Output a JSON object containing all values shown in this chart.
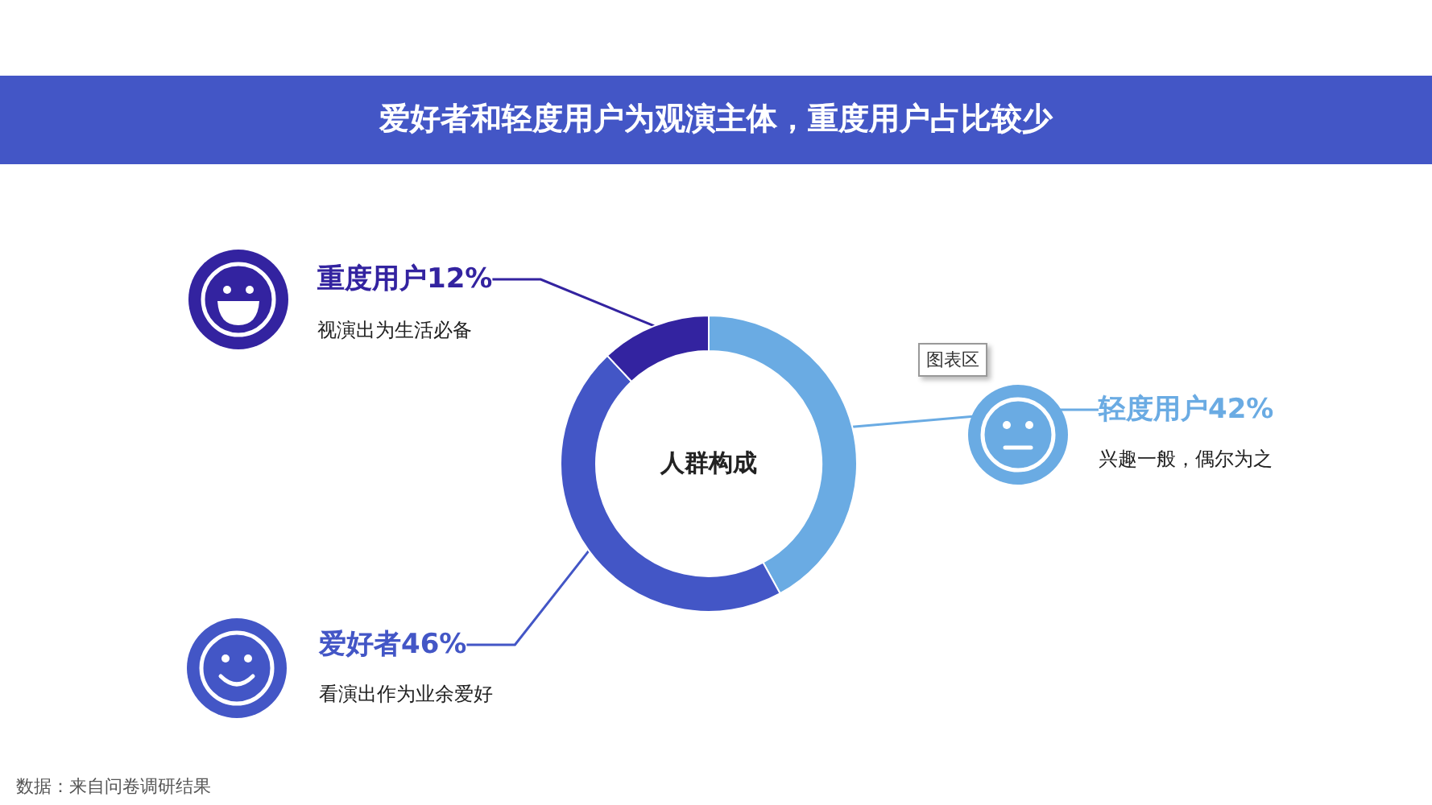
{
  "chart_data": {
    "type": "donut",
    "title": "爱好者和轻度用户为观演主体，重度用户占比较少",
    "categories": [
      "轻度用户",
      "爱好者",
      "重度用户"
    ],
    "values": [
      42,
      46,
      12
    ],
    "value_labels": [
      "42%",
      "46%",
      "12%"
    ],
    "colors": [
      "#6aabe3",
      "#4356c6",
      "#3323a0"
    ],
    "legend": false,
    "annotations": [
      "人群构成",
      "兴趣一般，偶尔为之",
      "看演出作为业余爱好",
      "视演出为生活必备",
      "图表区",
      "数据：来自问卷调研结果"
    ]
  }
}
